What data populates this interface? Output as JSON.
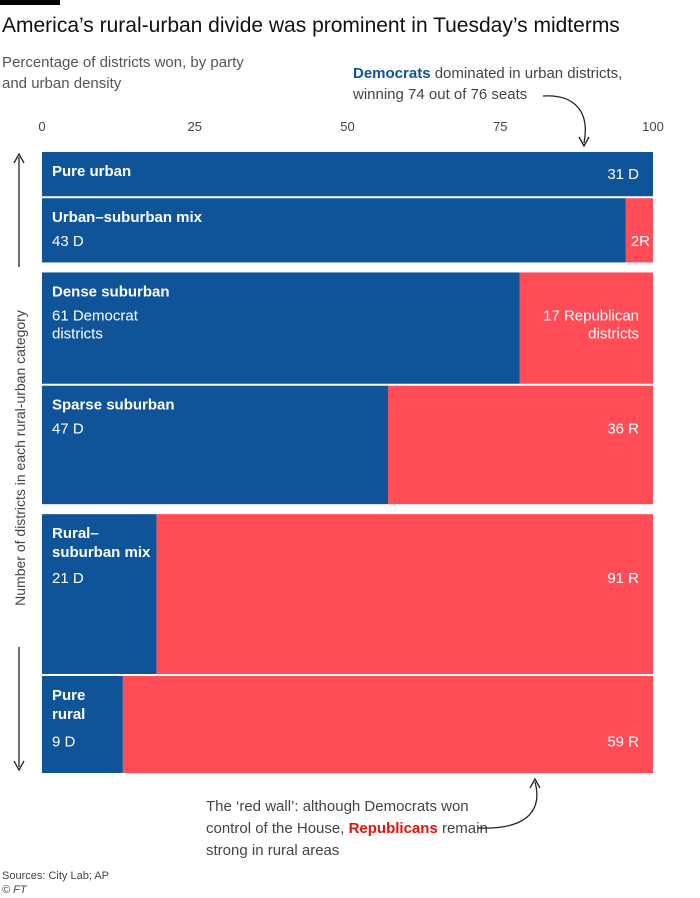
{
  "header": {
    "title": "America’s rural-urban divide was prominent in Tuesday’s midterms",
    "subtitle": "Percentage of districts won, by party and urban density"
  },
  "annotations": {
    "top": {
      "emph": "Democrats",
      "text": " dominated in urban districts, winning 74 out of 76 seats"
    },
    "bottom": {
      "pre": "The ‘red wall’: although Democrats won control of the House, ",
      "emph": "Republicans",
      "post": " remain strong in rural areas"
    }
  },
  "y_axis_label": "Number of districts in each rural-urban category",
  "footer": {
    "source": "Sources: City Lab; AP",
    "copyright": "© FT"
  },
  "colors": {
    "democrat": "#0f5499",
    "republican": "#ff4c57"
  },
  "chart_data": {
    "type": "bar",
    "orientation": "horizontal-stacked-percent",
    "xlim": [
      0,
      100
    ],
    "xticks": [
      0,
      25,
      50,
      75,
      100
    ],
    "bar_height_encodes": "number of districts in each rural-urban category",
    "groups": [
      {
        "rows": [
          {
            "name_lines": [
              "Pure urban"
            ],
            "dem": 31,
            "rep": 0,
            "dem_label": [
              "31 D"
            ],
            "rep_label": []
          },
          {
            "name_lines": [
              "Urban–suburban mix"
            ],
            "dem": 43,
            "rep": 2,
            "dem_label": [
              "43 D"
            ],
            "rep_label": [
              "2R"
            ]
          }
        ]
      },
      {
        "rows": [
          {
            "name_lines": [
              "Dense suburban"
            ],
            "dem": 61,
            "rep": 17,
            "dem_label": [
              "61 Democrat",
              "districts"
            ],
            "rep_label": [
              "17 Republican",
              "districts"
            ]
          },
          {
            "name_lines": [
              "Sparse suburban"
            ],
            "dem": 47,
            "rep": 36,
            "dem_label": [
              "47 D"
            ],
            "rep_label": [
              "36 R"
            ]
          }
        ]
      },
      {
        "rows": [
          {
            "name_lines": [
              "Rural–",
              "suburban mix"
            ],
            "dem": 21,
            "rep": 91,
            "dem_label": [
              "21 D"
            ],
            "rep_label": [
              "91 R"
            ]
          },
          {
            "name_lines": [
              "Pure",
              "rural"
            ],
            "dem": 9,
            "rep": 59,
            "dem_label": [
              "9 D"
            ],
            "rep_label": [
              "59 R"
            ]
          }
        ]
      }
    ]
  }
}
